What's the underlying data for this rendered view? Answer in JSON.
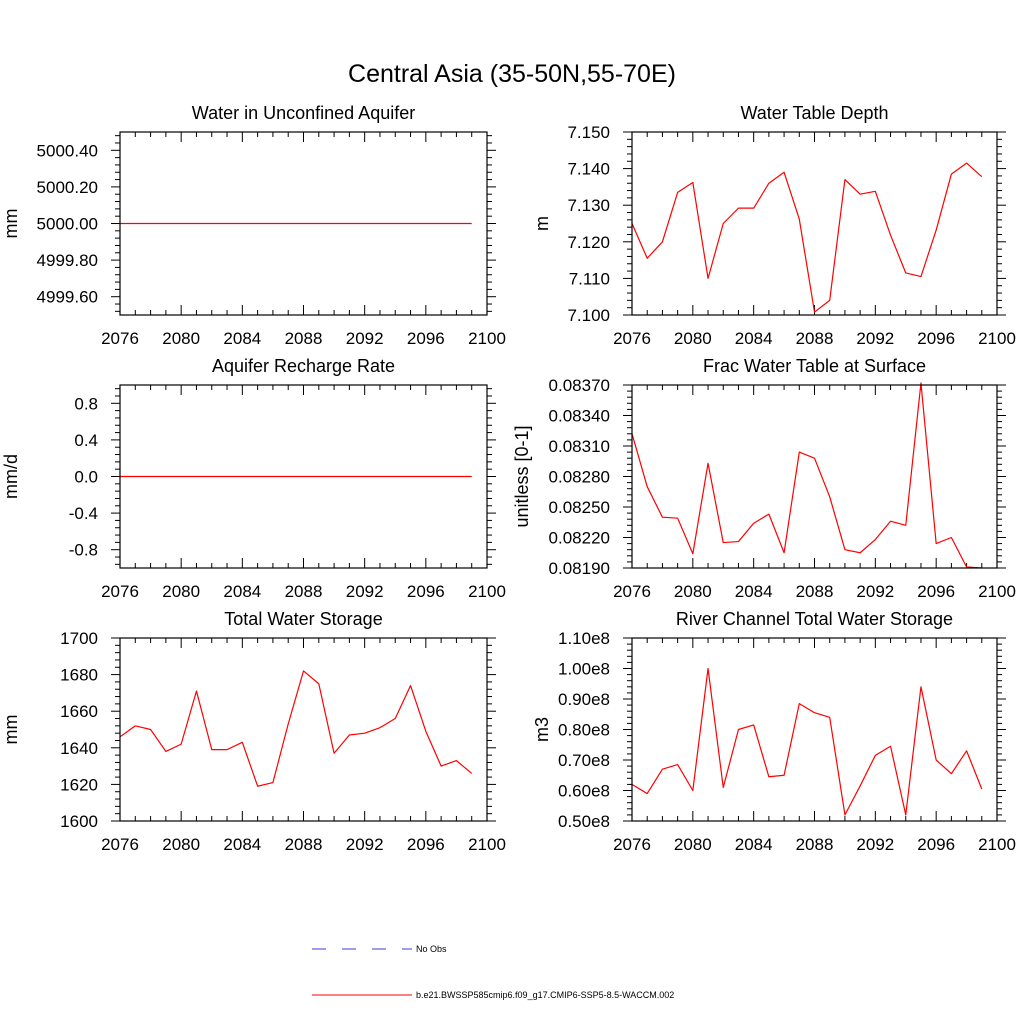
{
  "figure": {
    "title": "Central Asia (35-50N,55-70E)"
  },
  "legend": {
    "entries": [
      {
        "label": "No Obs",
        "color": "#3b3bd6",
        "style": "dashed"
      },
      {
        "label": "b.e21.BWSSP585cmip6.f09_g17.CMIP6-SSP5-8.5-WACCM.002",
        "color": "#ff0000",
        "style": "solid"
      }
    ]
  },
  "chart_data": [
    {
      "id": "water-unconfined-aquifer",
      "type": "line",
      "title": "Water in Unconfined Aquifer",
      "xlabel": "",
      "ylabel": "mm",
      "xlim": [
        2076,
        2100
      ],
      "ylim": [
        4999.5,
        5000.5
      ],
      "xticks": [
        2076,
        2080,
        2084,
        2088,
        2092,
        2096,
        2100
      ],
      "xtick_labels": [
        "2076",
        "2080",
        "2084",
        "2088",
        "2092",
        "2096",
        "2100"
      ],
      "yticks": [
        4999.6,
        4999.8,
        5000.0,
        5000.2,
        5000.4
      ],
      "ytick_labels": [
        "4999.60",
        "4999.80",
        "5000.00",
        "5000.20",
        "5000.40"
      ],
      "x": [
        2076,
        2099
      ],
      "series": [
        {
          "color": "#ff0000",
          "values": [
            5000.0,
            5000.0
          ]
        }
      ]
    },
    {
      "id": "water-table-depth",
      "type": "line",
      "title": "Water Table Depth",
      "xlabel": "",
      "ylabel": "m",
      "xlim": [
        2076,
        2100
      ],
      "ylim": [
        7.1,
        7.15
      ],
      "xticks": [
        2076,
        2080,
        2084,
        2088,
        2092,
        2096,
        2100
      ],
      "xtick_labels": [
        "2076",
        "2080",
        "2084",
        "2088",
        "2092",
        "2096",
        "2100"
      ],
      "yticks": [
        7.1,
        7.11,
        7.12,
        7.13,
        7.14,
        7.15
      ],
      "ytick_labels": [
        "7.100",
        "7.110",
        "7.120",
        "7.130",
        "7.140",
        "7.150"
      ],
      "x": [
        2076,
        2077,
        2078,
        2079,
        2080,
        2081,
        2082,
        2083,
        2084,
        2085,
        2086,
        2087,
        2088,
        2089,
        2090,
        2091,
        2092,
        2093,
        2094,
        2095,
        2096,
        2097,
        2098,
        2099
      ],
      "series": [
        {
          "color": "#ff0000",
          "values": [
            7.125,
            7.1155,
            7.12,
            7.1335,
            7.1362,
            7.11,
            7.125,
            7.1292,
            7.1292,
            7.136,
            7.139,
            7.1262,
            7.1008,
            7.104,
            7.137,
            7.133,
            7.1338,
            7.1218,
            7.1115,
            7.1105,
            7.1232,
            7.1385,
            7.1415,
            7.1378
          ]
        }
      ]
    },
    {
      "id": "aquifer-recharge-rate",
      "type": "line",
      "title": "Aquifer Recharge Rate",
      "xlabel": "",
      "ylabel": "mm/d",
      "xlim": [
        2076,
        2100
      ],
      "ylim": [
        -1.0,
        1.0
      ],
      "xticks": [
        2076,
        2080,
        2084,
        2088,
        2092,
        2096,
        2100
      ],
      "xtick_labels": [
        "2076",
        "2080",
        "2084",
        "2088",
        "2092",
        "2096",
        "2100"
      ],
      "yticks": [
        -0.8,
        -0.4,
        0.0,
        0.4,
        0.8
      ],
      "ytick_labels": [
        "-0.8",
        "-0.4",
        "0.0",
        "0.4",
        "0.8"
      ],
      "x": [
        2076,
        2099
      ],
      "series": [
        {
          "color": "#ff0000",
          "values": [
            0.0,
            0.0
          ]
        }
      ]
    },
    {
      "id": "frac-water-table-surface",
      "type": "line",
      "title": "Frac Water Table at Surface",
      "xlabel": "",
      "ylabel": "unitless [0-1]",
      "xlim": [
        2076,
        2100
      ],
      "ylim": [
        0.0819,
        0.0837
      ],
      "xticks": [
        2076,
        2080,
        2084,
        2088,
        2092,
        2096,
        2100
      ],
      "xtick_labels": [
        "2076",
        "2080",
        "2084",
        "2088",
        "2092",
        "2096",
        "2100"
      ],
      "yticks": [
        0.0819,
        0.0822,
        0.0825,
        0.0828,
        0.0831,
        0.0834,
        0.0837
      ],
      "ytick_labels": [
        "0.08190",
        "0.08220",
        "0.08250",
        "0.08280",
        "0.08310",
        "0.08340",
        "0.08370"
      ],
      "x": [
        2076,
        2077,
        2078,
        2079,
        2080,
        2081,
        2082,
        2083,
        2084,
        2085,
        2086,
        2087,
        2088,
        2089,
        2090,
        2091,
        2092,
        2093,
        2094,
        2095,
        2096,
        2097,
        2098,
        2099
      ],
      "series": [
        {
          "color": "#ff0000",
          "values": [
            0.08322,
            0.0827,
            0.0824,
            0.08239,
            0.08204,
            0.08293,
            0.08215,
            0.08216,
            0.08234,
            0.08243,
            0.08205,
            0.08304,
            0.08298,
            0.0826,
            0.08208,
            0.08205,
            0.08218,
            0.08236,
            0.08232,
            0.08372,
            0.08214,
            0.0822,
            0.08191,
            0.0819
          ]
        }
      ]
    },
    {
      "id": "total-water-storage",
      "type": "line",
      "title": "Total Water Storage",
      "xlabel": "",
      "ylabel": "mm",
      "xlim": [
        2076,
        2100
      ],
      "ylim": [
        1600,
        1700
      ],
      "xticks": [
        2076,
        2080,
        2084,
        2088,
        2092,
        2096,
        2100
      ],
      "xtick_labels": [
        "2076",
        "2080",
        "2084",
        "2088",
        "2092",
        "2096",
        "2100"
      ],
      "yticks": [
        1600,
        1620,
        1640,
        1660,
        1680,
        1700
      ],
      "ytick_labels": [
        "1600",
        "1620",
        "1640",
        "1660",
        "1680",
        "1700"
      ],
      "x": [
        2076,
        2077,
        2078,
        2079,
        2080,
        2081,
        2082,
        2083,
        2084,
        2085,
        2086,
        2087,
        2088,
        2089,
        2090,
        2091,
        2092,
        2093,
        2094,
        2095,
        2096,
        2097,
        2098,
        2099
      ],
      "series": [
        {
          "color": "#ff0000",
          "values": [
            1646,
            1652,
            1650,
            1638,
            1642,
            1671,
            1639,
            1639,
            1643,
            1619,
            1621,
            1653,
            1682,
            1675,
            1637,
            1647,
            1648,
            1651,
            1656,
            1674,
            1649,
            1630,
            1633,
            1626
          ]
        }
      ]
    },
    {
      "id": "river-channel-storage",
      "type": "line",
      "title": "River Channel Total Water Storage",
      "xlabel": "",
      "ylabel": "m3",
      "xlim": [
        2076,
        2100
      ],
      "ylim": [
        50000000.0,
        110000000.0
      ],
      "xticks": [
        2076,
        2080,
        2084,
        2088,
        2092,
        2096,
        2100
      ],
      "xtick_labels": [
        "2076",
        "2080",
        "2084",
        "2088",
        "2092",
        "2096",
        "2100"
      ],
      "yticks": [
        50000000.0,
        60000000.0,
        70000000.0,
        80000000.0,
        90000000.0,
        100000000.0,
        110000000.0
      ],
      "ytick_labels": [
        "0.50e8",
        "0.60e8",
        "0.70e8",
        "0.80e8",
        "0.90e8",
        "1.00e8",
        "1.10e8"
      ],
      "x": [
        2076,
        2077,
        2078,
        2079,
        2080,
        2081,
        2082,
        2083,
        2084,
        2085,
        2086,
        2087,
        2088,
        2089,
        2090,
        2091,
        2092,
        2093,
        2094,
        2095,
        2096,
        2097,
        2098,
        2099
      ],
      "series": [
        {
          "color": "#ff0000",
          "values": [
            62000000.0,
            59000000.0,
            67000000.0,
            68500000.0,
            60000000.0,
            100000000.0,
            61000000.0,
            80000000.0,
            81500000.0,
            64500000.0,
            65000000.0,
            88500000.0,
            85500000.0,
            84000000.0,
            52000000.0,
            61500000.0,
            71500000.0,
            74500000.0,
            52000000.0,
            94000000.0,
            70000000.0,
            65500000.0,
            73000000.0,
            60500000.0
          ]
        }
      ]
    }
  ]
}
